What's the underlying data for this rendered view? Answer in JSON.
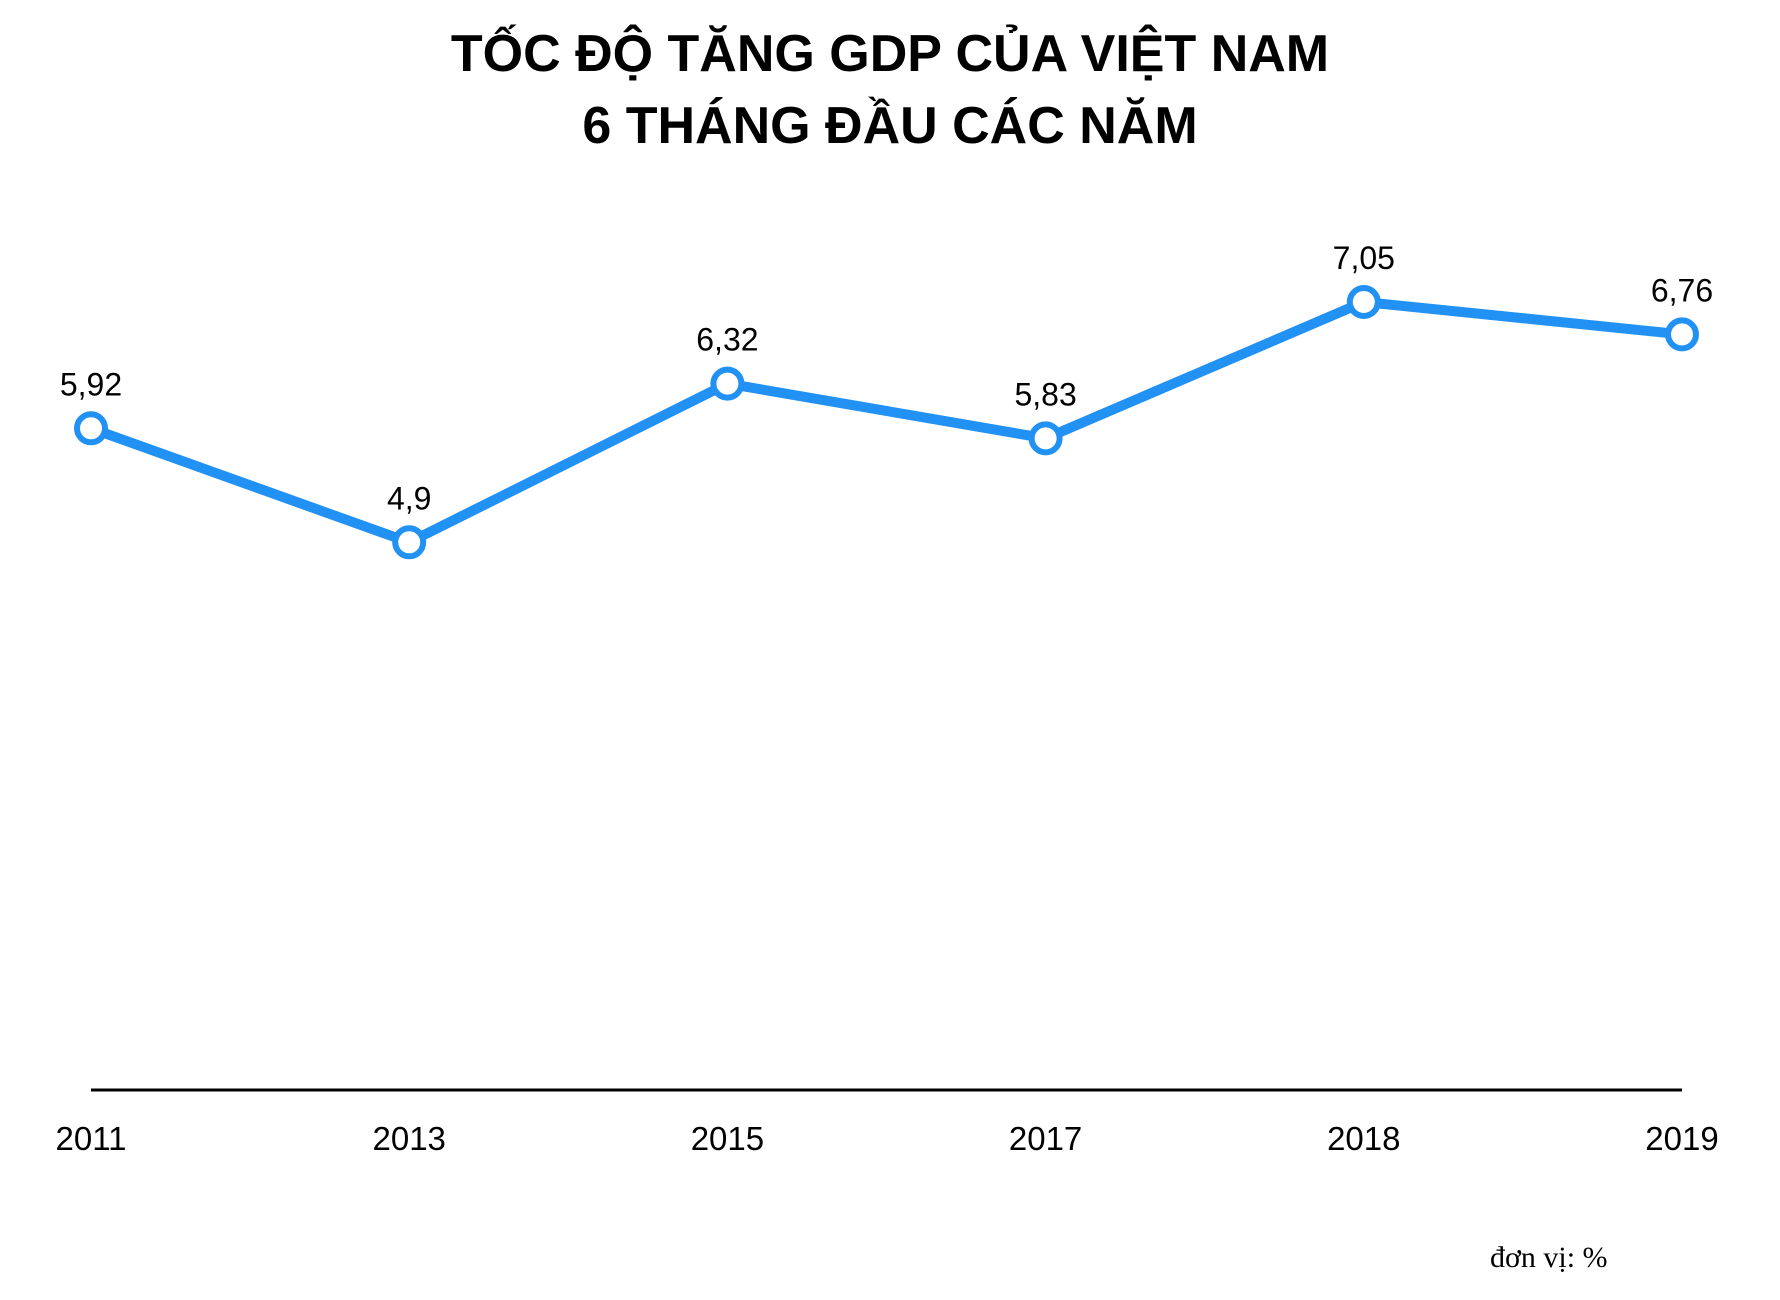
{
  "title": {
    "line1": "TỐC ĐỘ TĂNG GDP CỦA VIỆT NAM",
    "line2": "6 THÁNG ĐẦU CÁC NĂM"
  },
  "unit_note": "đơn vị: %",
  "colors": {
    "line": "#2191F3",
    "marker_fill": "#ffffff",
    "axis": "#000000"
  },
  "chart_data": {
    "type": "line",
    "title": "TỐC ĐỘ TĂNG GDP CỦA VIỆT NAM 6 THÁNG ĐẦU CÁC NĂM",
    "categories": [
      "2011",
      "2013",
      "2015",
      "2017",
      "2018",
      "2019"
    ],
    "series": [
      {
        "values": [
          5.92,
          4.9,
          6.32,
          5.83,
          7.05,
          6.76
        ],
        "labels": [
          "5,92",
          "4,9",
          "6,32",
          "5,83",
          "7,05",
          "6,76"
        ]
      }
    ],
    "xlabel": "",
    "ylabel": "",
    "ylim": [
      0,
      7.05
    ],
    "grid": false,
    "legend": "none",
    "y_axis_visible": false
  }
}
